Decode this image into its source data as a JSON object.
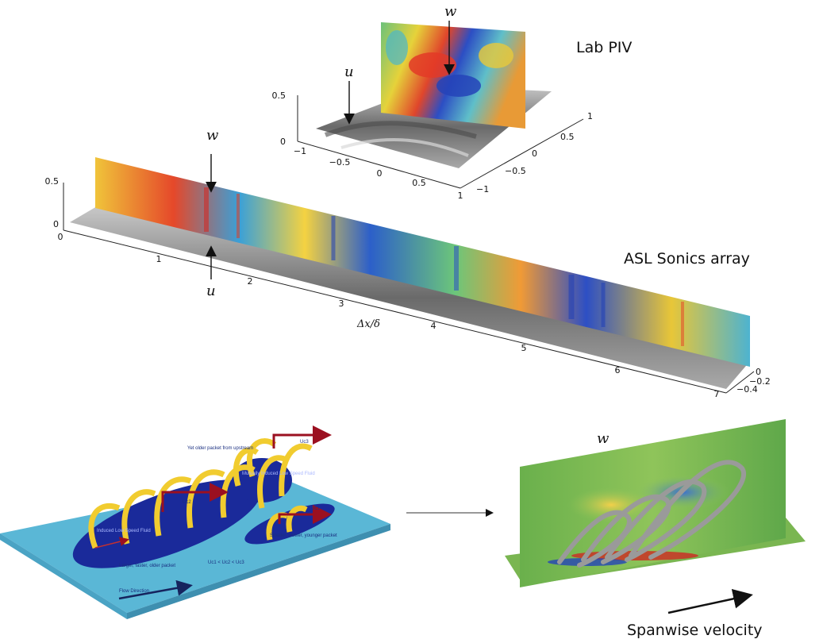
{
  "labels": {
    "lab_piv": "Lab PIV",
    "asl_sonics": "ASL Sonics array",
    "spanwise": "Spanwise velocity",
    "w": "w",
    "u": "u",
    "dx_axis": "Δx/δ"
  },
  "piv_ticks": {
    "vertical": [
      "0.5",
      "0"
    ],
    "x": [
      "−1",
      "−0.5",
      "0",
      "0.5",
      "1"
    ],
    "y": [
      "1",
      "0.5",
      "0",
      "−0.5",
      "−1"
    ]
  },
  "asl_ticks": {
    "vertical": [
      "0.5",
      "0"
    ],
    "x0": "0",
    "x": [
      "1",
      "2",
      "3",
      "4",
      "5",
      "6",
      "7"
    ],
    "y": [
      "0",
      "−0.2",
      "−0.4"
    ]
  },
  "packet_model": {
    "older_packet": "Yet older packet from upstream",
    "uc1": "Uc1",
    "uc2": "Uc2",
    "uc3": "Uc3",
    "relation": "Uc1 < Uc2 < Uc3",
    "larger_packet": "Larger, faster, older packet",
    "smaller_packet": "Smaller, slower, younger packet",
    "flow_direction": "Flow Direction",
    "induced_low_speed": "Induced Low Speed Fluid",
    "mutually_induced": "Mutually Induced Low Speed Fluid"
  },
  "colors": {
    "hot": "#d8261c",
    "cold": "#1f3fb8",
    "mid": "#f2d84a",
    "base": "#5ab7d6",
    "vortex": "#f1cc2f",
    "arrow_red": "#9b1020"
  }
}
